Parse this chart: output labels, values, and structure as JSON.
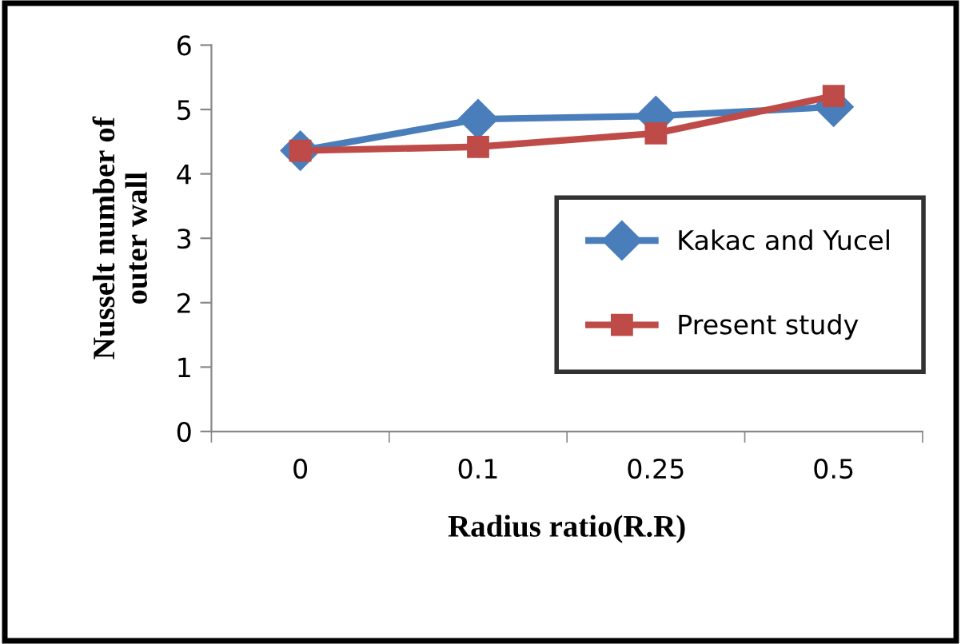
{
  "chart_data": {
    "type": "line",
    "xlabel": "Radius ratio(R.R)",
    "ylabel": "Nusselt number of\nouter wall",
    "categories": [
      "0",
      "0.1",
      "0.25",
      "0.5"
    ],
    "series": [
      {
        "name": "Kakac and Yucel",
        "color": "#4a7ebb",
        "marker": "diamond",
        "values": [
          4.36,
          4.85,
          4.9,
          5.04
        ]
      },
      {
        "name": "Present study",
        "color": "#be4b48",
        "marker": "square",
        "values": [
          4.36,
          4.42,
          4.63,
          5.21
        ]
      }
    ],
    "ylim": [
      0,
      6
    ],
    "yticks": [
      0,
      1,
      2,
      3,
      4,
      5,
      6
    ],
    "grid": false,
    "legend": "right",
    "line_style": "solid"
  }
}
